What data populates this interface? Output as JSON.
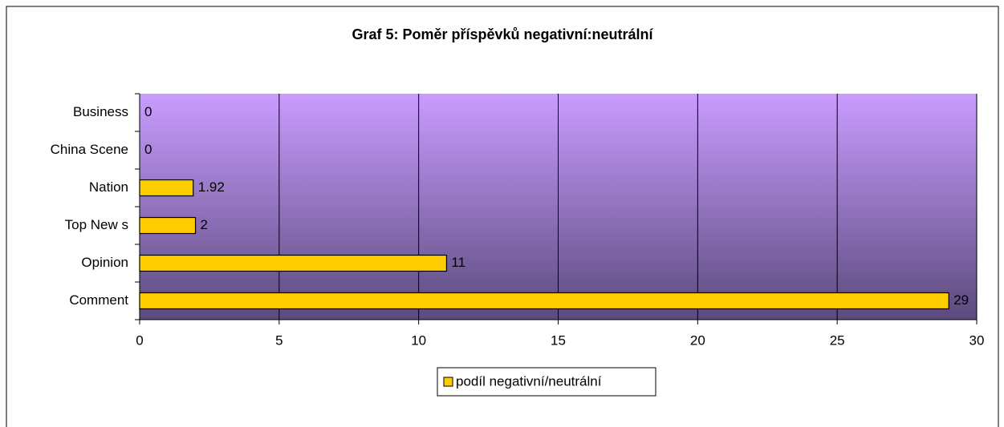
{
  "chart_data": {
    "type": "bar",
    "orientation": "horizontal",
    "title": "Graf 5: Poměr příspěvků negativní:neutrální",
    "categories": [
      "Business",
      "China Scene",
      "Nation",
      "Top New s",
      "Opinion",
      "Comment"
    ],
    "series": [
      {
        "name": "podíl negativní/neutrální",
        "color": "#ffcc00",
        "values": [
          0,
          0,
          1.92,
          2,
          11,
          29
        ]
      }
    ],
    "xlim": [
      0,
      30
    ],
    "xticks": [
      0,
      5,
      10,
      15,
      20,
      25,
      30
    ],
    "grid": true,
    "legend": "bottom"
  }
}
